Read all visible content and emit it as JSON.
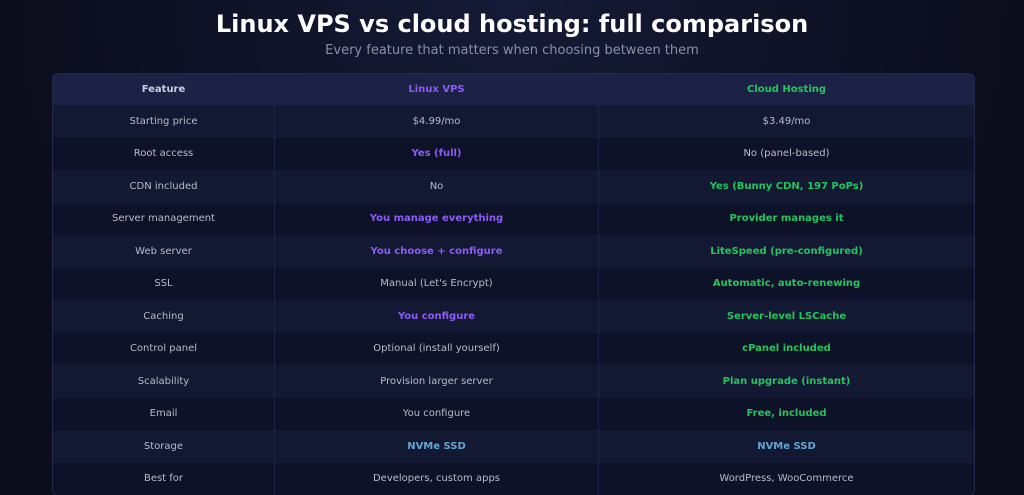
{
  "header": {
    "title": "Linux VPS vs cloud hosting: full comparison",
    "subtitle": "Every feature that matters when choosing between them"
  },
  "table": {
    "columns": [
      {
        "text": "Feature",
        "color": "#c9cde0"
      },
      {
        "text": "Linux VPS",
        "color": "#8b5cf6"
      },
      {
        "text": "Cloud Hosting",
        "color": "#22c55e"
      }
    ],
    "rows": [
      [
        "Starting price",
        "$4.99/mo",
        "$3.49/mo"
      ],
      [
        "Root access",
        {
          "text": "Yes (full)",
          "color": "#8b5cf6"
        },
        "No (panel-based)"
      ],
      [
        "CDN included",
        "No",
        {
          "text": "Yes (Bunny CDN, 197 PoPs)",
          "color": "#22c55e"
        }
      ],
      [
        "Server management",
        {
          "text": "You manage everything",
          "color": "#8b5cf6"
        },
        {
          "text": "Provider manages it",
          "color": "#22c55e"
        }
      ],
      [
        "Web server",
        {
          "text": "You choose + configure",
          "color": "#8b5cf6"
        },
        {
          "text": "LiteSpeed (pre-configured)",
          "color": "#22c55e"
        }
      ],
      [
        "SSL",
        "Manual (Let's Encrypt)",
        {
          "text": "Automatic, auto-renewing",
          "color": "#22c55e"
        }
      ],
      [
        "Caching",
        {
          "text": "You configure",
          "color": "#8b5cf6"
        },
        {
          "text": "Server-level LSCache",
          "color": "#22c55e"
        }
      ],
      [
        "Control panel",
        "Optional (install yourself)",
        {
          "text": "cPanel included",
          "color": "#22c55e"
        }
      ],
      [
        "Scalability",
        "Provision larger server",
        {
          "text": "Plan upgrade (instant)",
          "color": "#22c55e"
        }
      ],
      [
        "Email",
        "You configure",
        {
          "text": "Free, included",
          "color": "#22c55e"
        }
      ],
      [
        "Storage",
        {
          "text": "NVMe SSD",
          "color": "#5fa8d3"
        },
        {
          "text": "NVMe SSD",
          "color": "#5fa8d3"
        }
      ],
      [
        "Best for",
        "Developers, custom apps",
        "WordPress, WooCommerce"
      ]
    ]
  }
}
